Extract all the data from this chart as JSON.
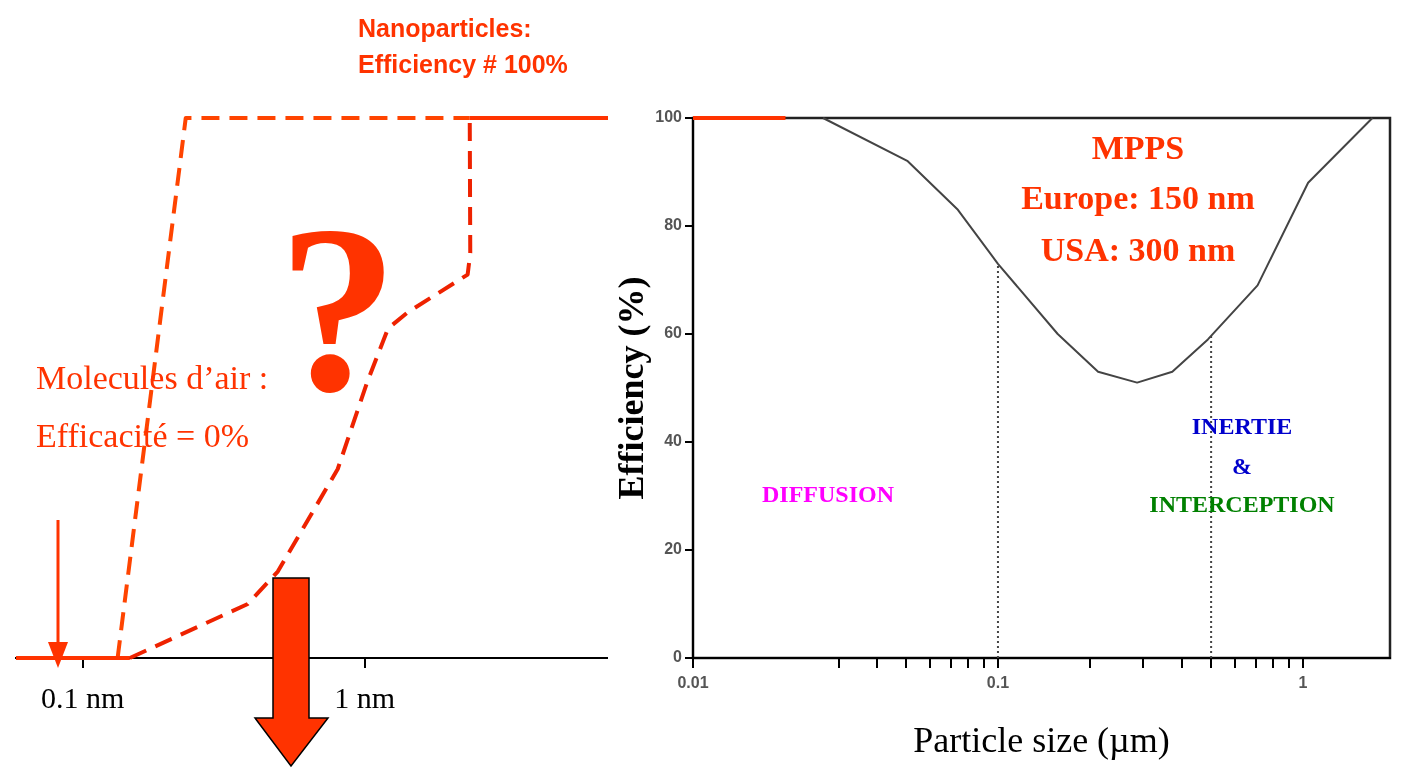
{
  "chart_data": [
    {
      "type": "line",
      "log": "x",
      "xlim": [
        0.058,
        7.3
      ],
      "xticks": [
        {
          "value": 0.1,
          "label": "0.1 nm"
        },
        {
          "value": 1,
          "label": "1 nm"
        }
      ],
      "ylim": [
        0,
        100
      ],
      "tick_labels": "x",
      "grid": false,
      "marker": "none",
      "annotations": [
        "Nanoparticles:",
        "Efficiency # 100%",
        "Molecules d’air :",
        "Efficacité = 0%",
        "?"
      ],
      "series": [
        {
          "color": "#ff3300",
          "line_style": "solid",
          "x": [
            0.058,
            0.147,
            1,
            2.36,
            7.3
          ],
          "values": [
            0,
            0,
            null,
            100,
            100
          ]
        },
        {
          "color": "#ff4400",
          "line_style": "dashed",
          "x": [
            0.133,
            0.232,
            2.36
          ],
          "values": [
            0,
            100,
            100
          ]
        },
        {
          "color": "#ee2200",
          "line_style": "dashed",
          "x": [
            0.147,
            0.385,
            0.492,
            0.803,
            1.02,
            1.21,
            1.42,
            2.32,
            2.37,
            2.36
          ],
          "values": [
            0,
            10,
            16,
            35,
            51,
            61,
            64,
            71,
            75,
            100
          ]
        }
      ]
    },
    {
      "type": "line",
      "log": "x",
      "xlim": [
        0.01,
        1.93
      ],
      "xticks": [
        {
          "value": 0.01,
          "label": "0.01"
        },
        {
          "value": 0.03,
          "label": null
        },
        {
          "value": 0.04,
          "label": null
        },
        {
          "value": 0.05,
          "label": null
        },
        {
          "value": 0.06,
          "label": null
        },
        {
          "value": 0.07,
          "label": null
        },
        {
          "value": 0.08,
          "label": null
        },
        {
          "value": 0.09,
          "label": null
        },
        {
          "value": 0.1,
          "label": "0.1"
        },
        {
          "value": 0.2,
          "label": null
        },
        {
          "value": 0.3,
          "label": null
        },
        {
          "value": 0.4,
          "label": null
        },
        {
          "value": 0.5,
          "label": null
        },
        {
          "value": 0.6,
          "label": null
        },
        {
          "value": 0.7,
          "label": null
        },
        {
          "value": 0.8,
          "label": null
        },
        {
          "value": 0.9,
          "label": null
        },
        {
          "value": 1,
          "label": "1"
        }
      ],
      "ylim": [
        0,
        100
      ],
      "yticks": [
        0,
        20,
        40,
        60,
        80,
        100
      ],
      "grid": false,
      "marker": "none",
      "xlabel": "Particle size (µm)",
      "ylabel": "Efficiency (%)",
      "annotations": [
        "MPPS",
        "Europe: 150 nm",
        "USA: 300 nm",
        "DIFFUSION",
        "INERTIE",
        "&",
        "INTERCEPTION"
      ],
      "ref_lines": [
        {
          "axis": "x",
          "value": 0.1,
          "color": "#444444",
          "line_style": "dotted"
        },
        {
          "axis": "x",
          "value": 0.5,
          "color": "#444444",
          "line_style": "dotted"
        }
      ],
      "series": [
        {
          "color": "#444444",
          "line_style": "solid",
          "x": [
            0.0267,
            0.0506,
            0.0739,
            0.1,
            0.157,
            0.213,
            0.286,
            0.373,
            0.488,
            0.71,
            1.04,
            1.69
          ],
          "values": [
            100,
            92,
            83,
            73,
            60,
            53,
            51,
            53,
            59,
            69,
            88,
            100
          ]
        },
        {
          "color": "#ff3300",
          "line_style": "solid",
          "x": [
            0.01,
            0.0201
          ],
          "values": [
            100,
            100
          ]
        }
      ]
    }
  ]
}
